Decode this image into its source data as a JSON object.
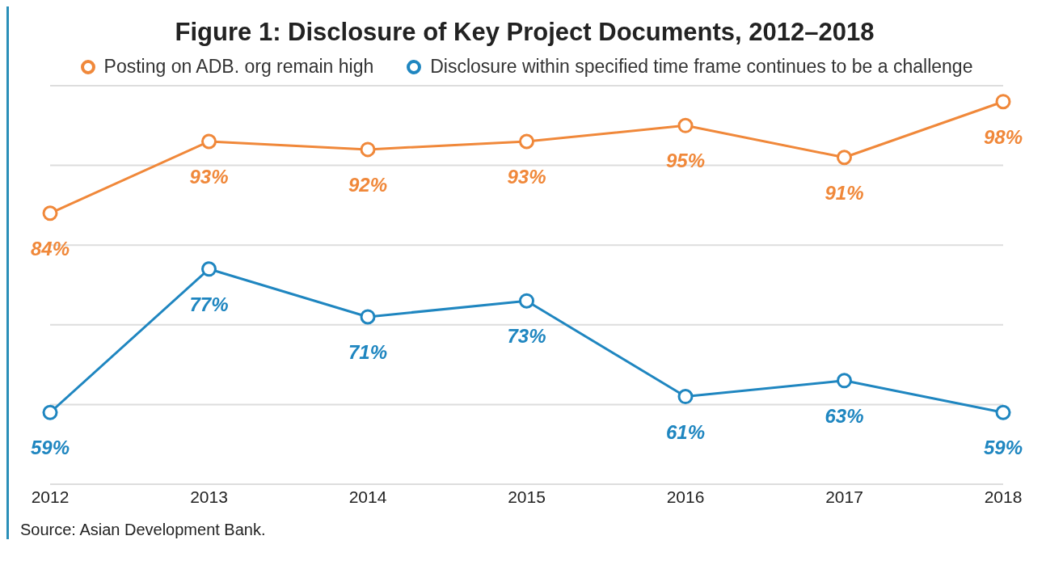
{
  "chart_data": {
    "type": "line",
    "title": "Figure 1: Disclosure of Key Project Documents, 2012–2018",
    "categories": [
      "2012",
      "2013",
      "2014",
      "2015",
      "2016",
      "2017",
      "2018"
    ],
    "series": [
      {
        "name": "Posting on ADB. org remain high",
        "color": "#f0883a",
        "values": [
          84,
          93,
          92,
          93,
          95,
          91,
          98
        ],
        "value_labels": [
          "84%",
          "93%",
          "92%",
          "93%",
          "95%",
          "91%",
          "98%"
        ]
      },
      {
        "name": "Disclosure within specified time frame continues to be a challenge",
        "color": "#1f86c0",
        "values": [
          59,
          77,
          71,
          73,
          61,
          63,
          59
        ],
        "value_labels": [
          "59%",
          "77%",
          "71%",
          "73%",
          "61%",
          "63%",
          "59%"
        ]
      }
    ],
    "ylim": [
      50,
      100
    ],
    "tick_labels": "x",
    "grid": "y",
    "legend": "top",
    "marker": "circle",
    "line_style": "solid",
    "annotations": [
      "Source: Asian Development Bank."
    ]
  }
}
